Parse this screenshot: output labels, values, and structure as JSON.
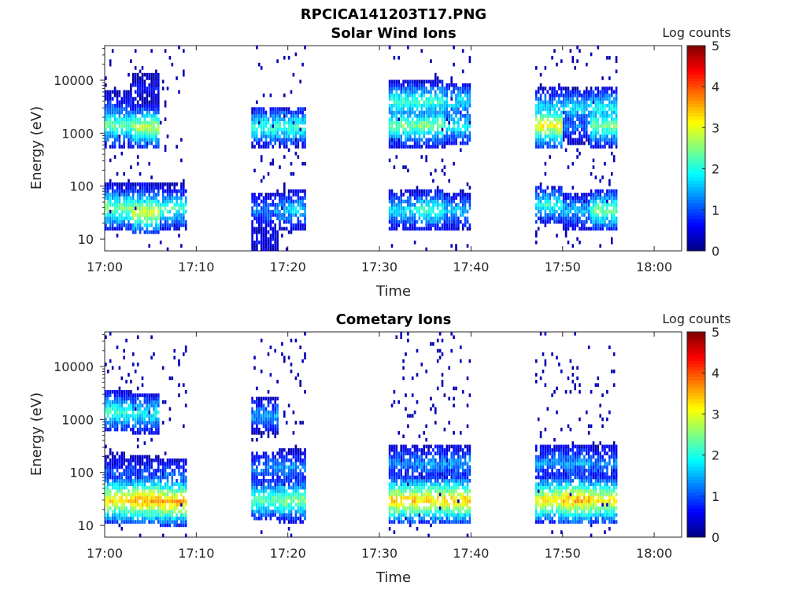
{
  "figure_title": "RPCICA141203T17.PNG",
  "chart_data": [
    {
      "type": "heatmap",
      "title": "Solar Wind Ions",
      "xlabel": "Time",
      "ylabel": "Energy (eV)",
      "x_scale": "time",
      "y_scale": "log",
      "xlim": [
        "17:00",
        "18:03"
      ],
      "ylim": [
        6,
        45000
      ],
      "x_ticks": [
        "17:00",
        "17:10",
        "17:20",
        "17:30",
        "17:40",
        "17:50",
        "18:00"
      ],
      "y_ticks": [
        "10",
        "100",
        "1000",
        "10000"
      ],
      "colorbar": {
        "label": "Log counts",
        "range": [
          0,
          5
        ],
        "ticks": [
          "0",
          "1",
          "2",
          "3",
          "4",
          "5"
        ],
        "colormap": "jet"
      },
      "blocks": [
        {
          "t0": "17:00",
          "t1": "17:03",
          "clusters": [
            {
              "e": 38,
              "level": 2.6
            },
            {
              "e": 55,
              "level": 1.2
            },
            {
              "e": 1400,
              "level": 2.4
            },
            {
              "e": 3000,
              "level": 1.0
            }
          ]
        },
        {
          "t0": "17:03",
          "t1": "17:06",
          "clusters": [
            {
              "e": 32,
              "level": 3.0
            },
            {
              "e": 55,
              "level": 1.3
            },
            {
              "e": 1300,
              "level": 2.8
            },
            {
              "e": 7000,
              "level": 0.6
            }
          ]
        },
        {
          "t0": "17:06",
          "t1": "17:09",
          "clusters": [
            {
              "e": 38,
              "level": 2.2
            },
            {
              "e": 55,
              "level": 1.0
            }
          ]
        },
        {
          "t0": "17:16",
          "t1": "17:19",
          "clusters": [
            {
              "e": 1300,
              "level": 2.2
            },
            {
              "e": 35,
              "level": 1.3
            },
            {
              "e": 10,
              "level": 0.6
            }
          ]
        },
        {
          "t0": "17:19",
          "t1": "17:22",
          "clusters": [
            {
              "e": 1300,
              "level": 2.2
            },
            {
              "e": 35,
              "level": 1.7
            }
          ]
        },
        {
          "t0": "17:31",
          "t1": "17:34",
          "clusters": [
            {
              "e": 1400,
              "level": 2.5
            },
            {
              "e": 4000,
              "level": 2.2
            },
            {
              "e": 35,
              "level": 1.8
            }
          ]
        },
        {
          "t0": "17:34",
          "t1": "17:37",
          "clusters": [
            {
              "e": 1400,
              "level": 2.5
            },
            {
              "e": 4000,
              "level": 2.2
            },
            {
              "e": 35,
              "level": 2.2
            }
          ]
        },
        {
          "t0": "17:37",
          "t1": "17:40",
          "clusters": [
            {
              "e": 1400,
              "level": 2.0
            },
            {
              "e": 4000,
              "level": 1.8
            },
            {
              "e": 35,
              "level": 1.6
            }
          ]
        },
        {
          "t0": "17:47",
          "t1": "17:50",
          "clusters": [
            {
              "e": 1400,
              "level": 3.2
            },
            {
              "e": 3000,
              "level": 1.8
            },
            {
              "e": 45,
              "level": 2.0
            }
          ]
        },
        {
          "t0": "17:50",
          "t1": "17:53",
          "clusters": [
            {
              "e": 1400,
              "level": 1.2
            },
            {
              "e": 3000,
              "level": 1.8
            },
            {
              "e": 35,
              "level": 1.6
            }
          ]
        },
        {
          "t0": "17:53",
          "t1": "17:56",
          "clusters": [
            {
              "e": 1400,
              "level": 2.5
            },
            {
              "e": 3000,
              "level": 2.0
            },
            {
              "e": 35,
              "level": 2.5
            }
          ]
        }
      ]
    },
    {
      "type": "heatmap",
      "title": "Cometary Ions",
      "xlabel": "Time",
      "ylabel": "Energy (eV)",
      "x_scale": "time",
      "y_scale": "log",
      "xlim": [
        "17:00",
        "18:03"
      ],
      "ylim": [
        6,
        45000
      ],
      "x_ticks": [
        "17:00",
        "17:10",
        "17:20",
        "17:30",
        "17:40",
        "17:50",
        "18:00"
      ],
      "y_ticks": [
        "10",
        "100",
        "1000",
        "10000"
      ],
      "colorbar": {
        "label": "Log counts",
        "range": [
          0,
          5
        ],
        "ticks": [
          "0",
          "1",
          "2",
          "3",
          "4",
          "5"
        ],
        "colormap": "jet"
      },
      "blocks": [
        {
          "t0": "17:00",
          "t1": "17:03",
          "clusters": [
            {
              "e": 30,
              "level": 3.4
            },
            {
              "e": 100,
              "level": 1.0
            },
            {
              "e": 1400,
              "level": 2.2
            }
          ]
        },
        {
          "t0": "17:03",
          "t1": "17:06",
          "clusters": [
            {
              "e": 30,
              "level": 3.7
            },
            {
              "e": 100,
              "level": 1.0
            },
            {
              "e": 1300,
              "level": 2.0
            }
          ]
        },
        {
          "t0": "17:06",
          "t1": "17:09",
          "clusters": [
            {
              "e": 28,
              "level": 3.6
            },
            {
              "e": 90,
              "level": 1.2
            }
          ]
        },
        {
          "t0": "17:16",
          "t1": "17:19",
          "clusters": [
            {
              "e": 30,
              "level": 2.4
            },
            {
              "e": 120,
              "level": 1.3
            },
            {
              "e": 1200,
              "level": 1.4
            }
          ]
        },
        {
          "t0": "17:19",
          "t1": "17:22",
          "clusters": [
            {
              "e": 30,
              "level": 2.6
            },
            {
              "e": 120,
              "level": 1.4
            }
          ]
        },
        {
          "t0": "17:31",
          "t1": "17:34",
          "clusters": [
            {
              "e": 30,
              "level": 3.5
            },
            {
              "e": 150,
              "level": 1.3
            }
          ]
        },
        {
          "t0": "17:34",
          "t1": "17:37",
          "clusters": [
            {
              "e": 30,
              "level": 3.4
            },
            {
              "e": 150,
              "level": 1.4
            }
          ]
        },
        {
          "t0": "17:37",
          "t1": "17:40",
          "clusters": [
            {
              "e": 30,
              "level": 3.5
            },
            {
              "e": 150,
              "level": 1.4
            }
          ]
        },
        {
          "t0": "17:47",
          "t1": "17:50",
          "clusters": [
            {
              "e": 30,
              "level": 3.3
            },
            {
              "e": 150,
              "level": 1.4
            }
          ]
        },
        {
          "t0": "17:50",
          "t1": "17:53",
          "clusters": [
            {
              "e": 30,
              "level": 3.6
            },
            {
              "e": 150,
              "level": 1.4
            }
          ]
        },
        {
          "t0": "17:53",
          "t1": "17:56",
          "clusters": [
            {
              "e": 30,
              "level": 3.3
            },
            {
              "e": 150,
              "level": 1.3
            }
          ]
        }
      ]
    }
  ]
}
